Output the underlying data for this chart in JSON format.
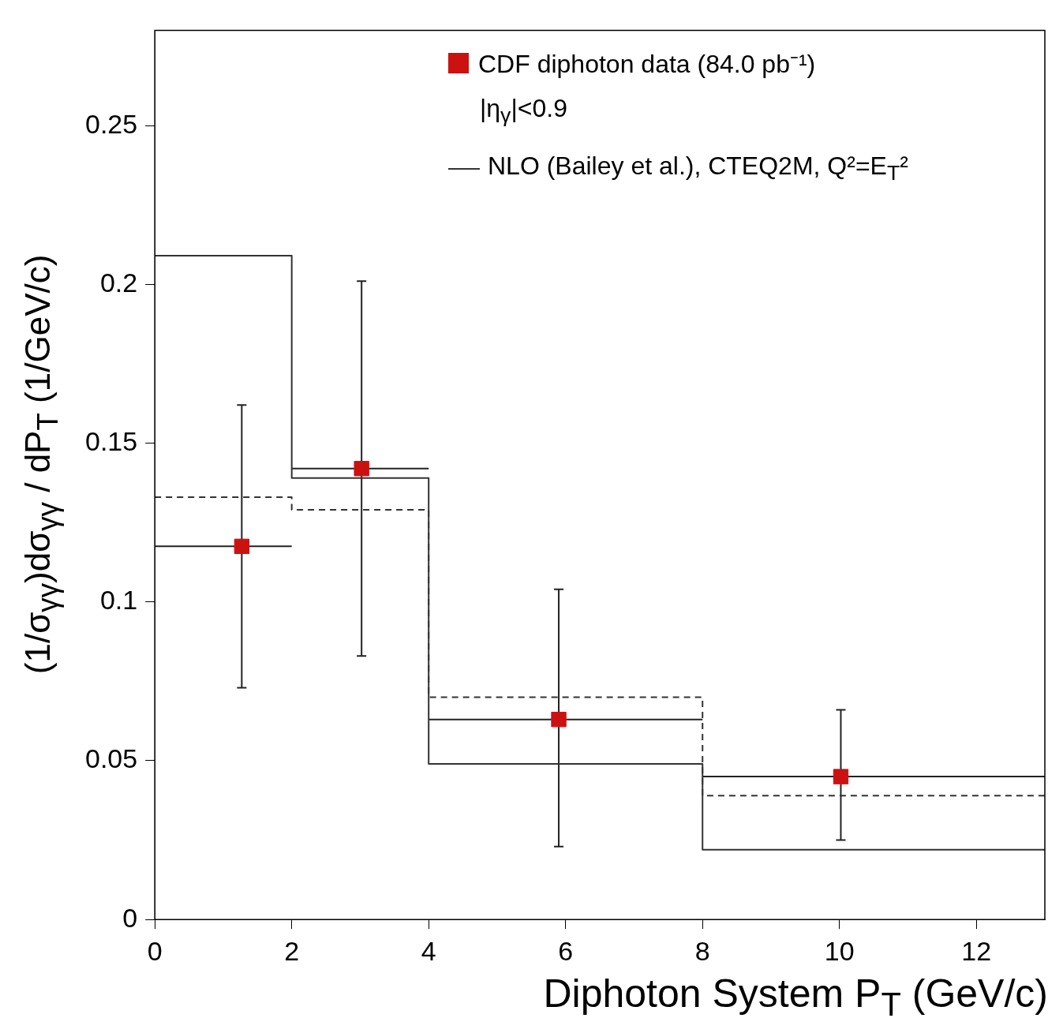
{
  "chart_data": {
    "type": "step",
    "xlabel": "Diphoton System P$_{T}$ (GeV/c)",
    "ylabel": "(1/σ$_{γγ}$)dσ$_{γγ}$ / dP$_{T}$ (1/GeV/c)",
    "annotations": [
      "|η$_{γ}$|<0.9"
    ],
    "xlim": [
      0,
      13
    ],
    "xticks": [
      0,
      2,
      4,
      6,
      8,
      10,
      12
    ],
    "ylim": [
      0,
      0.28
    ],
    "yticks": [
      0,
      0.05,
      0.1,
      0.15,
      0.2,
      0.25
    ],
    "grid": false,
    "legend": "top right",
    "series": [
      {
        "name": "CDF diphoton data (84.0 pb⁻¹)",
        "type": "scatter",
        "color": "#cc1111",
        "marker": "square",
        "x": [
          1.27,
          3.02,
          5.9,
          10.02
        ],
        "values": [
          0.1175,
          0.142,
          0.063,
          0.045
        ],
        "errors": [
          [
            0.073,
            0.162
          ],
          [
            0.083,
            0.201
          ],
          [
            0.023,
            0.104
          ],
          [
            0.025,
            0.066
          ]
        ],
        "xerrors": [
          [
            0,
            2
          ],
          [
            2,
            4
          ],
          [
            4,
            8
          ],
          [
            8,
            13
          ]
        ]
      },
      {
        "name": "NLO (Bailey et al.), CTEQ2M, Q²=E$_{T}$²",
        "color": "#333333",
        "line_style": "solid",
        "x": [
          0,
          2,
          4,
          8,
          13
        ],
        "values": [
          0.209,
          0.139,
          0.049,
          0.022,
          0.022
        ]
      },
      {
        "color": "#333333",
        "line_style": "dashed",
        "x": [
          0,
          2,
          4,
          8,
          13
        ],
        "values": [
          0.133,
          0.129,
          0.07,
          0.039,
          0.039
        ]
      }
    ]
  }
}
